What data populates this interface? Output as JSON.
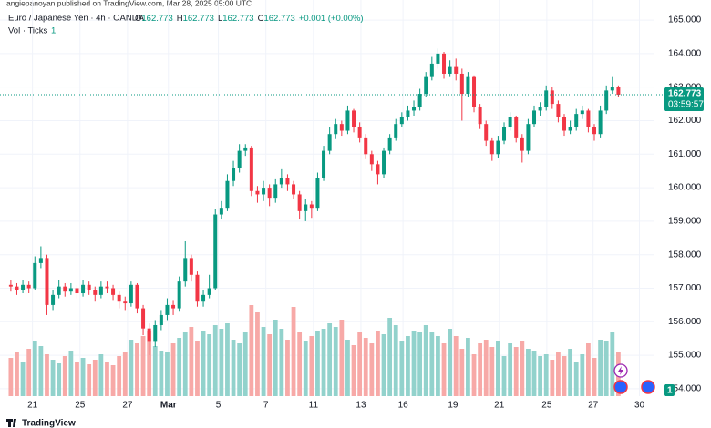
{
  "publisher": "angiepanoyan published on TradingView.com, Mar 28, 2025 05:00 UTC",
  "brand": "TradingView",
  "legend": {
    "symbol": "Euro / Japanese Yen · 4h · OANDA",
    "ohlc": [
      {
        "key": "O",
        "value": 162.773
      },
      {
        "key": "H",
        "value": 162.773
      },
      {
        "key": "L",
        "value": 162.773
      },
      {
        "key": "C",
        "value": 162.773
      }
    ],
    "change": "+0.001 (+0.00%)",
    "volume_name": "Vol · Ticks",
    "volume_value": 1
  },
  "chart_data": {
    "type": "candlestick",
    "up_color": "#089981",
    "down_color": "#f23645",
    "up_volume_color": "#92d2cc",
    "down_volume_color": "#f7a9a7",
    "current_price": 162.773,
    "countdown": "03:59:57",
    "volume_badge": 1,
    "ylim": [
      153.78,
      165.6
    ],
    "yticks": [
      {
        "value": 154,
        "label": "154.000"
      },
      {
        "value": 155,
        "label": "155.000"
      },
      {
        "value": 156,
        "label": "156.000"
      },
      {
        "value": 157,
        "label": "157.000"
      },
      {
        "value": 158,
        "label": "158.000"
      },
      {
        "value": 159,
        "label": "159.000"
      },
      {
        "value": 160,
        "label": "160.000"
      },
      {
        "value": 161,
        "label": "161.000"
      },
      {
        "value": 162,
        "label": "162.000"
      },
      {
        "value": 163,
        "label": "163.000"
      },
      {
        "value": 164,
        "label": "164.000"
      },
      {
        "value": 165,
        "label": "165.000"
      }
    ],
    "xlim": [
      -1.8,
      107
    ],
    "xticks": [
      {
        "value": 3.6,
        "label": "21"
      },
      {
        "value": 11.5,
        "label": "25"
      },
      {
        "value": 19.4,
        "label": "27"
      },
      {
        "value": 26.2,
        "label": "Mar"
      },
      {
        "value": 34.5,
        "label": "5"
      },
      {
        "value": 42.4,
        "label": "7"
      },
      {
        "value": 50.3,
        "label": "11"
      },
      {
        "value": 58.2,
        "label": "13"
      },
      {
        "value": 65.2,
        "label": "16"
      },
      {
        "value": 73.5,
        "label": "19"
      },
      {
        "value": 81.2,
        "label": "21"
      },
      {
        "value": 89.1,
        "label": "25"
      },
      {
        "value": 96.8,
        "label": "27"
      },
      {
        "value": 104.5,
        "label": "30"
      }
    ],
    "grid": true,
    "open": [
      157.1,
      157.05,
      156.95,
      157.1,
      157.0,
      157.75,
      157.9,
      156.5,
      156.8,
      157.05,
      156.9,
      157.0,
      156.85,
      157.1,
      156.95,
      156.8,
      157.05,
      157.0,
      156.8,
      156.6,
      156.55,
      157.1,
      156.4,
      155.8,
      155.4,
      155.9,
      156.2,
      156.5,
      156.4,
      157.2,
      157.9,
      157.4,
      156.6,
      156.8,
      157.0,
      159.2,
      159.4,
      160.2,
      160.6,
      161.1,
      161.2,
      159.9,
      159.8,
      160.0,
      159.7,
      160.1,
      160.3,
      160.1,
      159.8,
      159.3,
      159.5,
      159.4,
      160.3,
      161.1,
      161.6,
      161.9,
      161.7,
      162.3,
      161.8,
      161.5,
      161.0,
      160.7,
      160.4,
      161.1,
      161.5,
      161.9,
      162.1,
      162.3,
      162.4,
      162.8,
      163.3,
      163.7,
      164.0,
      163.4,
      163.6,
      163.4,
      162.8,
      163.3,
      162.4,
      161.9,
      161.4,
      161.0,
      161.4,
      161.8,
      162.1,
      161.5,
      161.1,
      161.9,
      162.3,
      162.4,
      162.9,
      162.5,
      162.1,
      161.7,
      161.8,
      162.2,
      162.3,
      161.8,
      161.6,
      162.3,
      162.9,
      163.0
    ],
    "high": [
      157.25,
      157.15,
      157.25,
      157.2,
      157.95,
      158.25,
      158.0,
      156.95,
      157.25,
      157.15,
      157.15,
      157.1,
      157.25,
      157.2,
      157.05,
      157.2,
      157.2,
      157.1,
      156.9,
      156.75,
      157.2,
      157.15,
      156.5,
      155.95,
      156.05,
      156.35,
      156.7,
      156.65,
      157.35,
      158.4,
      158.0,
      157.5,
      156.95,
      157.4,
      159.35,
      159.6,
      160.4,
      160.8,
      161.3,
      161.3,
      161.25,
      160.05,
      160.2,
      160.1,
      160.25,
      160.55,
      160.4,
      160.2,
      159.9,
      159.65,
      159.6,
      160.45,
      161.25,
      161.8,
      162.05,
      162.0,
      162.45,
      162.35,
      161.95,
      161.6,
      161.1,
      160.8,
      161.2,
      161.6,
      162.05,
      162.25,
      162.45,
      162.6,
      162.95,
      163.45,
      163.9,
      164.15,
      164.05,
      163.8,
      163.85,
      163.55,
      163.45,
      163.35,
      162.5,
      162.0,
      161.5,
      161.55,
      161.95,
      162.25,
      162.15,
      161.6,
      162.05,
      162.45,
      162.55,
      163.05,
      163.0,
      162.6,
      162.2,
      162.0,
      162.35,
      162.45,
      162.35,
      161.9,
      162.45,
      163.05,
      163.3,
      163.05
    ],
    "low": [
      156.9,
      156.8,
      156.85,
      156.85,
      156.95,
      157.6,
      156.2,
      156.35,
      156.7,
      156.75,
      156.8,
      156.7,
      156.75,
      156.8,
      156.6,
      156.7,
      156.85,
      156.65,
      156.4,
      156.35,
      156.45,
      156.25,
      155.6,
      155.0,
      155.25,
      155.75,
      156.05,
      156.2,
      156.3,
      157.05,
      157.2,
      156.45,
      156.45,
      156.7,
      156.95,
      159.05,
      159.3,
      160.05,
      160.45,
      160.95,
      159.75,
      159.55,
      159.6,
      159.45,
      159.55,
      160.0,
      159.9,
      159.65,
      159.05,
      159.0,
      159.1,
      159.3,
      160.2,
      161.0,
      161.45,
      161.55,
      161.6,
      161.65,
      161.35,
      160.85,
      160.5,
      160.1,
      160.3,
      161.0,
      161.4,
      161.8,
      162.0,
      162.15,
      162.3,
      162.7,
      163.2,
      163.55,
      163.25,
      163.3,
      163.2,
      162.0,
      162.7,
      162.25,
      161.75,
      161.25,
      160.8,
      160.9,
      161.3,
      161.7,
      161.35,
      160.75,
      161.0,
      161.8,
      162.15,
      162.3,
      162.35,
      161.95,
      161.55,
      161.6,
      161.7,
      162.05,
      161.65,
      161.4,
      161.5,
      162.2,
      162.8,
      162.7
    ],
    "close": [
      157.05,
      156.95,
      157.1,
      157.0,
      157.75,
      157.9,
      156.5,
      156.8,
      157.05,
      156.9,
      157.0,
      156.85,
      157.1,
      156.95,
      156.8,
      157.05,
      157.0,
      156.8,
      156.6,
      156.55,
      157.1,
      156.4,
      155.8,
      155.4,
      155.9,
      156.2,
      156.5,
      156.4,
      157.2,
      157.9,
      157.4,
      156.6,
      156.8,
      157.0,
      159.2,
      159.4,
      160.2,
      160.6,
      161.1,
      161.2,
      159.9,
      159.8,
      160.0,
      159.7,
      160.1,
      160.3,
      160.1,
      159.8,
      159.3,
      159.5,
      159.4,
      160.3,
      161.1,
      161.6,
      161.9,
      161.7,
      162.3,
      161.8,
      161.5,
      161.0,
      160.7,
      160.4,
      161.1,
      161.5,
      161.9,
      162.1,
      162.3,
      162.4,
      162.8,
      163.3,
      163.7,
      164.0,
      163.4,
      163.6,
      163.4,
      162.8,
      163.3,
      162.4,
      161.9,
      161.4,
      161.0,
      161.4,
      161.8,
      162.1,
      161.5,
      161.1,
      161.9,
      162.3,
      162.4,
      162.9,
      162.5,
      162.1,
      161.7,
      161.8,
      162.2,
      162.3,
      161.8,
      161.6,
      162.3,
      162.9,
      163.0,
      162.773
    ],
    "volume": [
      42,
      48,
      38,
      52,
      60,
      55,
      46,
      40,
      36,
      44,
      50,
      38,
      42,
      35,
      40,
      46,
      38,
      34,
      44,
      48,
      62,
      58,
      66,
      72,
      55,
      50,
      48,
      58,
      64,
      70,
      76,
      60,
      72,
      68,
      78,
      74,
      80,
      62,
      58,
      70,
      100,
      92,
      76,
      68,
      84,
      74,
      62,
      98,
      70,
      60,
      66,
      72,
      74,
      80,
      76,
      84,
      62,
      56,
      70,
      64,
      58,
      72,
      68,
      86,
      78,
      60,
      66,
      72,
      70,
      78,
      70,
      66,
      58,
      74,
      66,
      52,
      64,
      46,
      58,
      62,
      54,
      60,
      44,
      58,
      54,
      60,
      52,
      50,
      44,
      46,
      40,
      48,
      44,
      52,
      38,
      46,
      58,
      42,
      62,
      60,
      70,
      48
    ]
  }
}
